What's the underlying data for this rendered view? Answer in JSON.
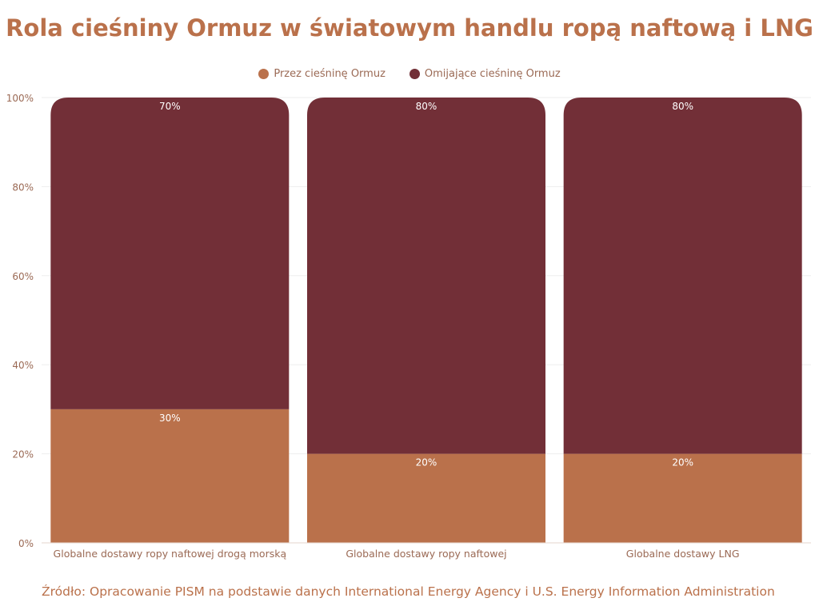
{
  "chart_data": {
    "type": "bar",
    "stacked": true,
    "title": "Rola cieśniny Ormuz w światowym handlu ropą naftową i LNG",
    "categories": [
      "Globalne dostawy ropy naftowej drogą morską",
      "Globalne dostawy ropy naftowej",
      "Globalne dostawy LNG"
    ],
    "series": [
      {
        "name": "Przez cieśninę Ormuz",
        "values": [
          30,
          20,
          20
        ],
        "color": "#BA714B"
      },
      {
        "name": "Omijające cieśninę Ormuz",
        "values": [
          70,
          80,
          80
        ],
        "color": "#722F37"
      }
    ],
    "ylim": [
      0,
      100
    ],
    "yticks": [
      "0%",
      "20%",
      "40%",
      "60%",
      "80%",
      "100%"
    ],
    "grid": true,
    "legend_position": "top-center",
    "source": "Źródło: Opracowanie PISM na podstawie danych International Energy Agency i U.S. Energy Information Administration"
  }
}
